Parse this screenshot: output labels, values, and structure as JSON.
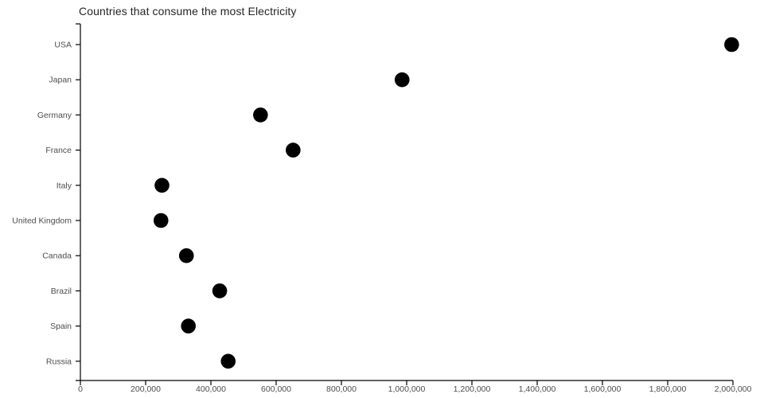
{
  "chart_data": {
    "type": "scatter",
    "variant": "dot-plot-horizontal-categories",
    "title": "Countries that consume the most Electricity",
    "xlabel": "",
    "ylabel": "",
    "categories": [
      "USA",
      "Japan",
      "Germany",
      "France",
      "Italy",
      "United Kingdom",
      "Canada",
      "Brazil",
      "Spain",
      "Russia"
    ],
    "values": [
      1996000,
      986000,
      552000,
      652000,
      250000,
      247000,
      325000,
      427000,
      331000,
      453000
    ],
    "xlim": [
      0,
      2000000
    ],
    "x_tick_step": 200000,
    "x_tick_labels": [
      "0",
      "200,000",
      "400,000",
      "600,000",
      "800,000",
      "1,000,000",
      "1,200,000",
      "1,400,000",
      "1,600,000",
      "1,800,000",
      "2,000,000"
    ],
    "grid": false,
    "legend": false,
    "marker": {
      "shape": "circle",
      "radius": 9.3,
      "color": "#000000"
    },
    "colors": {
      "axis": "#000000",
      "tick_label": "#4d4d4d",
      "title": "#26262b",
      "background": "#ffffff"
    }
  }
}
